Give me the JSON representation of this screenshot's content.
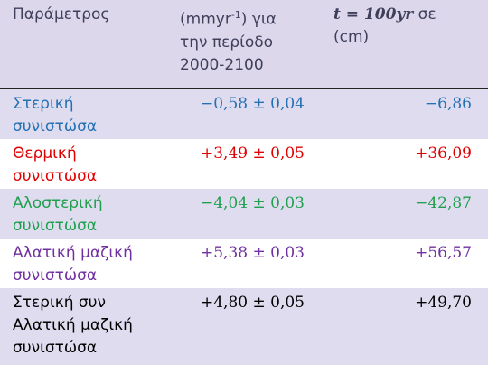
{
  "table": {
    "header": [
      {
        "text": "Παράμετρος"
      },
      {
        "pre": "(mmyr",
        "sup": "-1",
        "post": ") για",
        "lines": [
          "την περίοδο",
          "2000-2100"
        ]
      },
      {
        "math": "t = 100yr",
        "post": "σε",
        "lines": [
          "(cm)"
        ]
      }
    ],
    "rows": [
      [
        [
          "Στερική",
          "συνιστώσα"
        ],
        "−0,58 ± 0,04",
        "−6,86"
      ],
      [
        [
          "Θερμική",
          "συνιστώσα"
        ],
        "+3,49 ± 0,05",
        "+36,09"
      ],
      [
        [
          "Αλοστερική",
          "συνιστώσα"
        ],
        "−4,04 ± 0,03",
        "−42,87"
      ],
      [
        [
          "Αλατική μαζική",
          "συνιστώσα"
        ],
        "+5,38 ± 0,03",
        "+56,57"
      ],
      [
        [
          "Στερική συν",
          "Αλατική μαζική",
          "συνιστώσα"
        ],
        "+4,80 ± 0,05",
        "+49,70"
      ]
    ]
  }
}
